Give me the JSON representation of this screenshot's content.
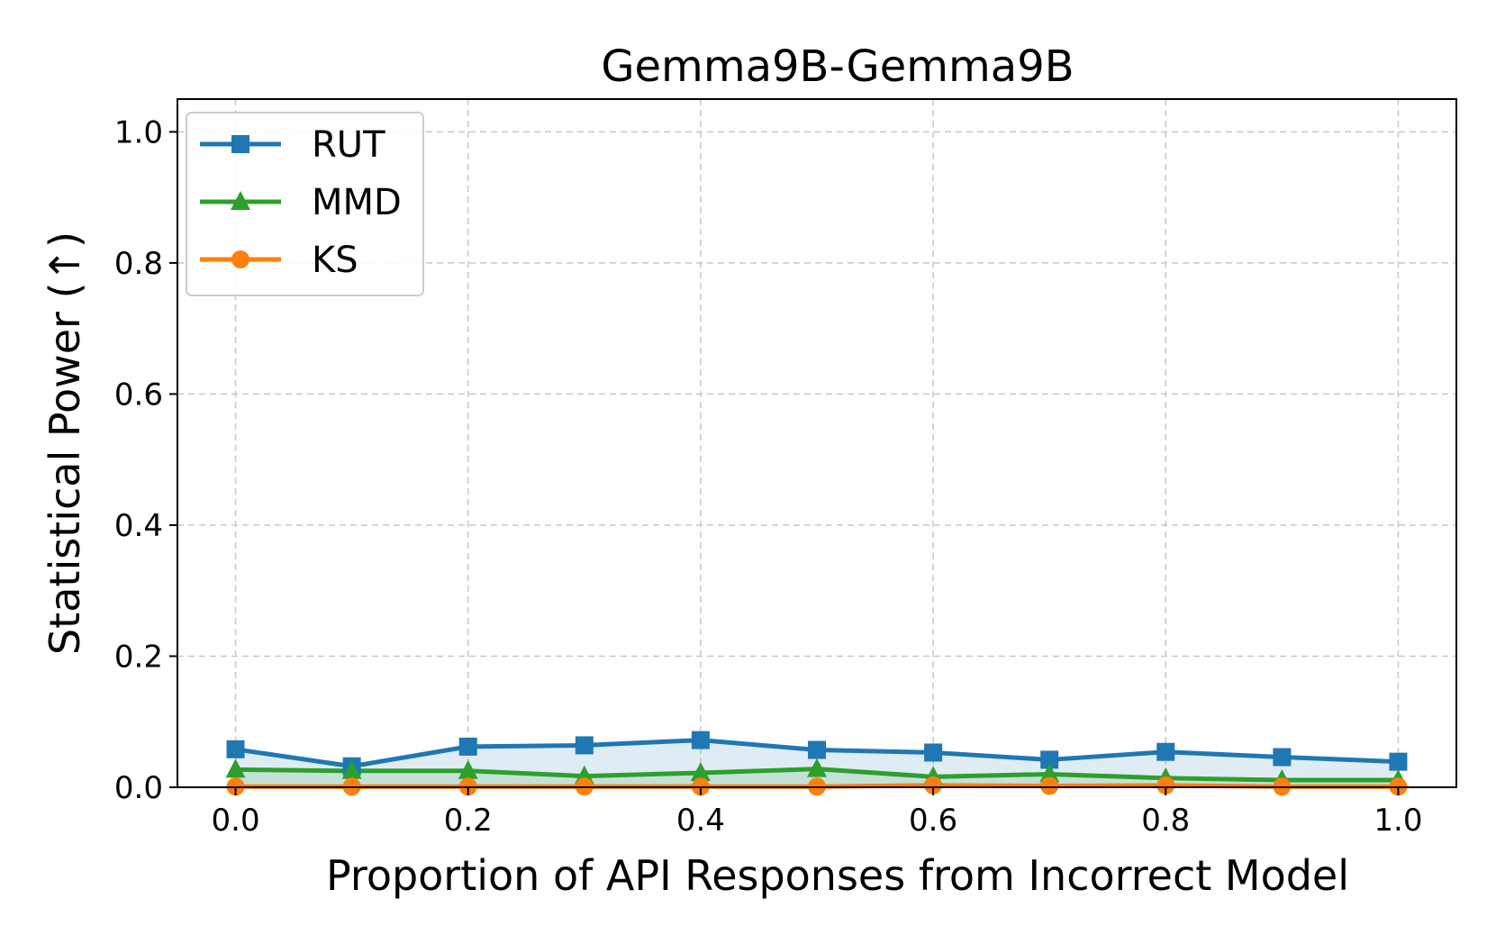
{
  "chart_data": {
    "type": "line",
    "title": "Gemma9B-Gemma9B",
    "xlabel": "Proportion of API Responses from Incorrect Model",
    "ylabel": "Statistical Power (↑)",
    "xlim": [
      -0.05,
      1.05
    ],
    "ylim": [
      0.0,
      1.05
    ],
    "xticks": [
      "0.0",
      "0.2",
      "0.4",
      "0.6",
      "0.8",
      "1.0"
    ],
    "yticks": [
      "0.0",
      "0.2",
      "0.4",
      "0.6",
      "0.8",
      "1.0"
    ],
    "grid": true,
    "legend_position": "upper-left",
    "x": [
      0.0,
      0.1,
      0.2,
      0.3,
      0.4,
      0.5,
      0.6,
      0.7,
      0.8,
      0.9,
      1.0
    ],
    "series": [
      {
        "name": "RUT",
        "color": "#1f77b4",
        "marker": "square",
        "fill": true,
        "values": [
          0.058,
          0.032,
          0.062,
          0.064,
          0.072,
          0.057,
          0.053,
          0.042,
          0.054,
          0.046,
          0.039
        ]
      },
      {
        "name": "MMD",
        "color": "#2ca02c",
        "marker": "triangle",
        "fill": true,
        "values": [
          0.027,
          0.025,
          0.025,
          0.017,
          0.022,
          0.028,
          0.016,
          0.02,
          0.014,
          0.011,
          0.011
        ]
      },
      {
        "name": "KS",
        "color": "#ff7f0e",
        "marker": "circle",
        "fill": false,
        "values": [
          0.001,
          0.001,
          0.001,
          0.001,
          0.001,
          0.001,
          0.003,
          0.002,
          0.003,
          0.001,
          0.001
        ]
      }
    ]
  }
}
